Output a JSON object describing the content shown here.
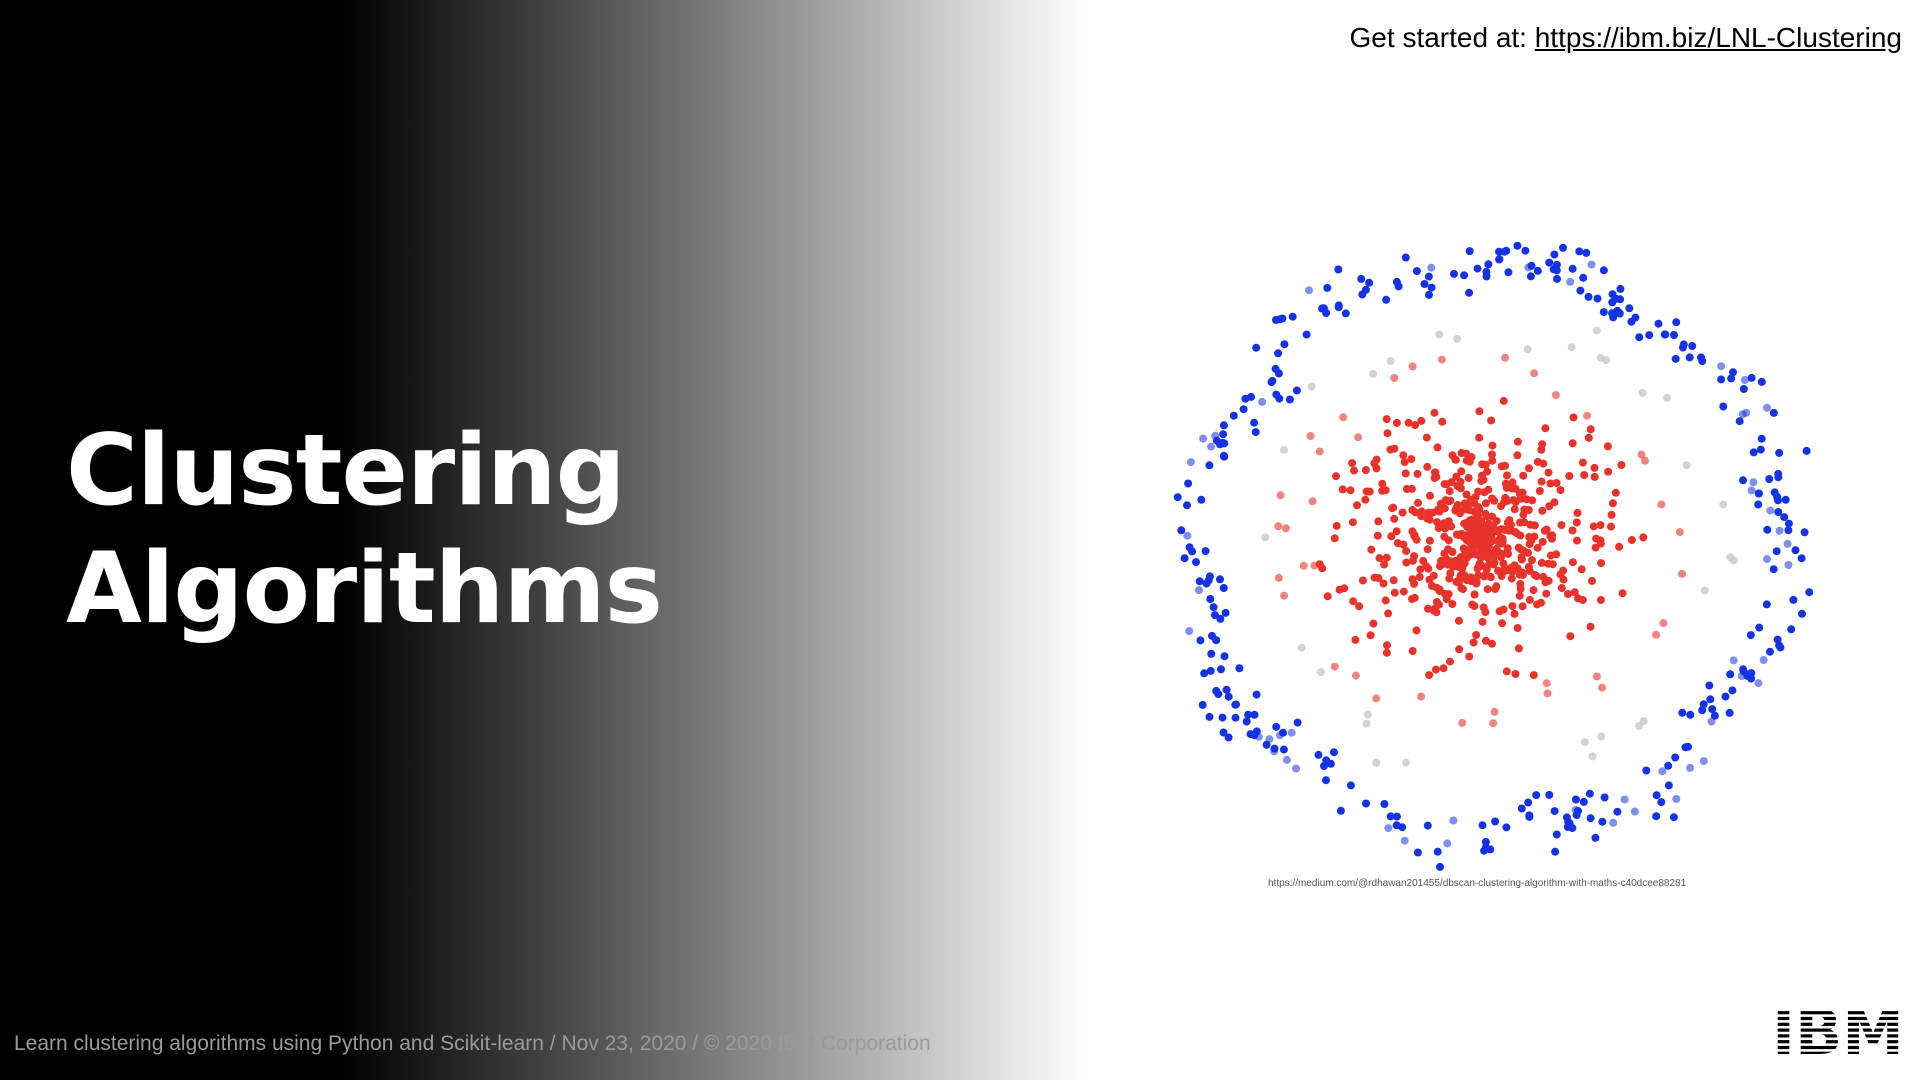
{
  "slide": {
    "title_line1": "Clustering",
    "title_line2": "Algorithms",
    "get_started_label": "Get started at:",
    "get_started_link": "https://ibm.biz/LNL-Clustering",
    "image_source": "https://medium.com/@rdhawan201455/dbscan-clustering-algorithm-with-maths-c40dcee88281",
    "footer_text": "Learn clustering algorithms using Python and Scikit-learn / Nov 23, 2020 / © 2020 IBM Corporation",
    "logo": "IBM"
  },
  "colors": {
    "outer_cluster": "#1432e6",
    "inner_cluster": "#e8322a",
    "noise": "#c8c8c8",
    "title": "#ffffff",
    "footer": "#9a9a9a"
  },
  "chart_data": {
    "type": "scatter",
    "title": "",
    "xlabel": "",
    "ylabel": "",
    "grid": false,
    "series": [
      {
        "name": "",
        "shape": "ring",
        "count": 340,
        "color": "#1432e6"
      },
      {
        "name": "",
        "shape": "disc",
        "count": 620,
        "color": "#e8322a"
      },
      {
        "name": "",
        "shape": "scattered",
        "count": 30,
        "color": "#c8c8c8"
      }
    ]
  }
}
